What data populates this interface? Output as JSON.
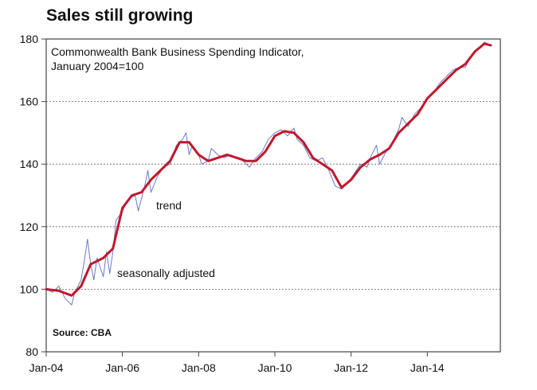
{
  "heading": "Sales still growing",
  "chart_data": {
    "type": "line",
    "title": "Sales still growing",
    "subtitle": [
      "Commonwealth Bank Business Spending Indicator,",
      "January 2004=100"
    ],
    "source": "Source: CBA",
    "xlim": [
      "2004-01",
      "2015-12"
    ],
    "ylim": [
      80,
      180
    ],
    "yticks": [
      80,
      100,
      120,
      140,
      160,
      180
    ],
    "xticks": [
      {
        "date": "2004-01",
        "label": "Jan-04"
      },
      {
        "date": "2006-01",
        "label": "Jan-06"
      },
      {
        "date": "2008-01",
        "label": "Jan-08"
      },
      {
        "date": "2010-01",
        "label": "Jan-10"
      },
      {
        "date": "2012-01",
        "label": "Jan-12"
      },
      {
        "date": "2014-01",
        "label": "Jan-14"
      }
    ],
    "grid": "horizontal-dashed",
    "annotations": [
      {
        "text": "trend",
        "series": "trend",
        "near": "2006-07"
      },
      {
        "text": "seasonally adjusted",
        "series": "seasonally adjusted",
        "near": "2005-05"
      }
    ],
    "series": [
      {
        "name": "trend",
        "color": "#c0182b",
        "points": [
          [
            "2004-01",
            100
          ],
          [
            "2004-05",
            99.5
          ],
          [
            "2004-09",
            98
          ],
          [
            "2004-12",
            101
          ],
          [
            "2005-03",
            108
          ],
          [
            "2005-07",
            110
          ],
          [
            "2005-10",
            113
          ],
          [
            "2006-01",
            126
          ],
          [
            "2006-04",
            130
          ],
          [
            "2006-07",
            131
          ],
          [
            "2006-10",
            135
          ],
          [
            "2007-01",
            138
          ],
          [
            "2007-04",
            141
          ],
          [
            "2007-07",
            147
          ],
          [
            "2007-10",
            147
          ],
          [
            "2008-01",
            143
          ],
          [
            "2008-04",
            141
          ],
          [
            "2008-07",
            142
          ],
          [
            "2008-10",
            143
          ],
          [
            "2009-01",
            142
          ],
          [
            "2009-04",
            141
          ],
          [
            "2009-07",
            141
          ],
          [
            "2009-10",
            144
          ],
          [
            "2010-01",
            149
          ],
          [
            "2010-04",
            150.5
          ],
          [
            "2010-07",
            150
          ],
          [
            "2010-10",
            147
          ],
          [
            "2011-01",
            142
          ],
          [
            "2011-04",
            140
          ],
          [
            "2011-07",
            138
          ],
          [
            "2011-10",
            132.5
          ],
          [
            "2012-01",
            135
          ],
          [
            "2012-04",
            139
          ],
          [
            "2012-07",
            141.5
          ],
          [
            "2012-10",
            143
          ],
          [
            "2013-01",
            145
          ],
          [
            "2013-04",
            150
          ],
          [
            "2013-07",
            153
          ],
          [
            "2013-10",
            156
          ],
          [
            "2014-01",
            161
          ],
          [
            "2014-04",
            164
          ],
          [
            "2014-07",
            167
          ],
          [
            "2014-10",
            170
          ],
          [
            "2015-01",
            172
          ],
          [
            "2015-04",
            176
          ],
          [
            "2015-07",
            178.5
          ],
          [
            "2015-09",
            178
          ]
        ]
      },
      {
        "name": "seasonally adjusted",
        "color": "#6a7ac8",
        "points": [
          [
            "2004-01",
            100
          ],
          [
            "2004-03",
            99
          ],
          [
            "2004-05",
            101
          ],
          [
            "2004-06",
            99
          ],
          [
            "2004-07",
            97
          ],
          [
            "2004-09",
            95
          ],
          [
            "2004-10",
            99
          ],
          [
            "2004-12",
            103
          ],
          [
            "2005-01",
            109
          ],
          [
            "2005-02",
            116
          ],
          [
            "2005-03",
            108
          ],
          [
            "2005-04",
            103
          ],
          [
            "2005-05",
            110
          ],
          [
            "2005-06",
            107
          ],
          [
            "2005-07",
            104
          ],
          [
            "2005-08",
            112
          ],
          [
            "2005-09",
            105
          ],
          [
            "2005-10",
            112
          ],
          [
            "2005-11",
            122
          ],
          [
            "2006-01",
            125
          ],
          [
            "2006-03",
            129
          ],
          [
            "2006-05",
            130
          ],
          [
            "2006-06",
            125
          ],
          [
            "2006-08",
            133
          ],
          [
            "2006-09",
            138
          ],
          [
            "2006-10",
            131
          ],
          [
            "2006-12",
            136
          ],
          [
            "2007-02",
            139
          ],
          [
            "2007-04",
            140
          ],
          [
            "2007-06",
            146
          ],
          [
            "2007-08",
            148
          ],
          [
            "2007-09",
            150
          ],
          [
            "2007-10",
            143
          ],
          [
            "2007-11",
            146
          ],
          [
            "2008-01",
            143
          ],
          [
            "2008-02",
            140
          ],
          [
            "2008-04",
            141
          ],
          [
            "2008-05",
            145
          ],
          [
            "2008-07",
            143
          ],
          [
            "2008-09",
            142
          ],
          [
            "2008-11",
            143
          ],
          [
            "2009-01",
            142
          ],
          [
            "2009-03",
            141
          ],
          [
            "2009-05",
            139
          ],
          [
            "2009-07",
            142
          ],
          [
            "2009-09",
            144
          ],
          [
            "2009-11",
            148
          ],
          [
            "2010-01",
            150
          ],
          [
            "2010-03",
            151
          ],
          [
            "2010-05",
            149
          ],
          [
            "2010-07",
            151.5
          ],
          [
            "2010-08",
            148
          ],
          [
            "2010-10",
            146
          ],
          [
            "2010-12",
            142
          ],
          [
            "2011-02",
            141
          ],
          [
            "2011-04",
            142
          ],
          [
            "2011-06",
            138
          ],
          [
            "2011-08",
            133
          ],
          [
            "2011-10",
            132
          ],
          [
            "2011-12",
            134
          ],
          [
            "2012-02",
            137
          ],
          [
            "2012-04",
            140
          ],
          [
            "2012-06",
            139
          ],
          [
            "2012-07",
            142
          ],
          [
            "2012-09",
            146
          ],
          [
            "2012-10",
            140
          ],
          [
            "2012-12",
            144
          ],
          [
            "2013-02",
            147
          ],
          [
            "2013-04",
            151
          ],
          [
            "2013-05",
            155
          ],
          [
            "2013-07",
            152
          ],
          [
            "2013-09",
            156
          ],
          [
            "2013-11",
            158
          ],
          [
            "2014-01",
            161
          ],
          [
            "2014-03",
            163
          ],
          [
            "2014-05",
            166
          ],
          [
            "2014-07",
            168
          ],
          [
            "2014-09",
            170
          ],
          [
            "2014-11",
            171
          ],
          [
            "2015-01",
            171
          ],
          [
            "2015-03",
            175
          ],
          [
            "2015-05",
            177
          ],
          [
            "2015-07",
            179
          ],
          [
            "2015-09",
            178
          ]
        ]
      }
    ]
  }
}
